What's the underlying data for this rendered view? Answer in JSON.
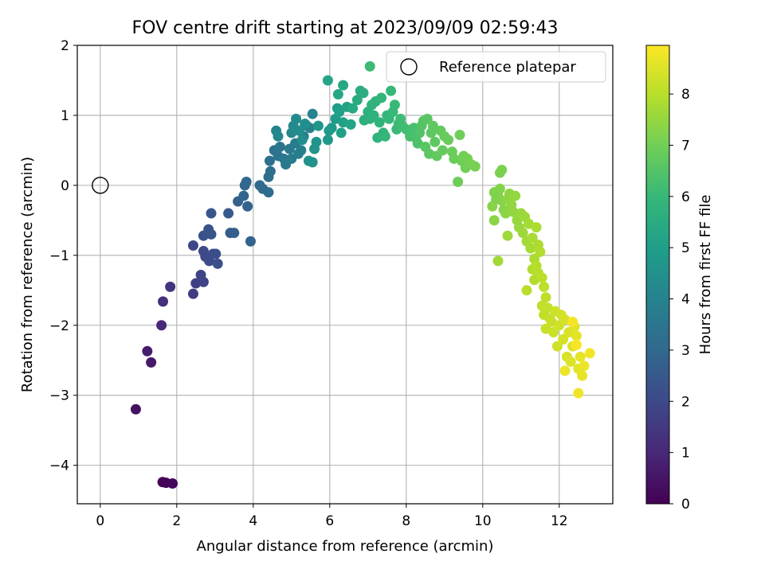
{
  "chart_data": {
    "type": "scatter",
    "title": "FOV centre drift starting at 2023/09/09 02:59:43",
    "xlabel": "Angular distance from reference (arcmin)",
    "ylabel": "Rotation from reference (arcmin)",
    "xlim": [
      -0.6,
      13.4
    ],
    "ylim": [
      -4.55,
      2.0
    ],
    "xticks": [
      0,
      2,
      4,
      6,
      8,
      10,
      12
    ],
    "yticks": [
      -4,
      -3,
      -2,
      -1,
      0,
      1,
      2
    ],
    "xtick_labels": [
      "0",
      "2",
      "4",
      "6",
      "8",
      "10",
      "12"
    ],
    "ytick_labels": [
      "−4",
      "−3",
      "−2",
      "−1",
      "0",
      "1",
      "2"
    ],
    "grid": true,
    "legend": {
      "placement": "top-right",
      "entries": [
        "Reference platepar"
      ]
    },
    "reference_point": {
      "x": 0,
      "y": 0
    },
    "colorbar": {
      "label": "Hours from first FF file",
      "range": [
        0,
        8.95
      ],
      "ticks": [
        0,
        1,
        2,
        3,
        4,
        5,
        6,
        7,
        8
      ],
      "colormap": "viridis",
      "colors": [
        "#440154",
        "#482878",
        "#3e4989",
        "#31688e",
        "#26828e",
        "#1f9e89",
        "#35b779",
        "#6ece58",
        "#b5de2b",
        "#fde725"
      ]
    },
    "series": [
      {
        "points": [
          [
            1.63,
            -4.24,
            0.05
          ],
          [
            1.72,
            -4.25,
            0.1
          ],
          [
            1.89,
            -4.26,
            0.15
          ],
          [
            0.93,
            -3.2,
            0.4
          ],
          [
            1.33,
            -2.53,
            0.6
          ],
          [
            1.23,
            -2.37,
            0.7
          ],
          [
            1.6,
            -2.0,
            1.0
          ],
          [
            1.64,
            -1.66,
            1.2
          ],
          [
            1.83,
            -1.45,
            1.35
          ],
          [
            2.43,
            -1.55,
            1.6
          ],
          [
            2.5,
            -1.4,
            1.7
          ],
          [
            2.7,
            -1.38,
            1.8
          ],
          [
            2.63,
            -1.28,
            1.85
          ],
          [
            2.43,
            -0.86,
            1.9
          ],
          [
            2.75,
            -1.02,
            1.95
          ],
          [
            2.7,
            -0.94,
            2.0
          ],
          [
            2.85,
            -1.08,
            2.05
          ],
          [
            2.95,
            -0.98,
            2.1
          ],
          [
            3.02,
            -0.98,
            2.15
          ],
          [
            3.07,
            -1.12,
            2.2
          ],
          [
            2.7,
            -0.72,
            2.25
          ],
          [
            2.83,
            -0.63,
            2.3
          ],
          [
            2.9,
            -0.7,
            2.35
          ],
          [
            2.9,
            -0.4,
            2.4
          ],
          [
            3.35,
            -0.4,
            2.55
          ],
          [
            3.4,
            -0.68,
            2.6
          ],
          [
            3.5,
            -0.68,
            2.65
          ],
          [
            3.6,
            -0.23,
            2.75
          ],
          [
            3.85,
            -0.3,
            2.8
          ],
          [
            3.93,
            -0.8,
            2.85
          ],
          [
            3.75,
            -0.15,
            2.9
          ],
          [
            3.78,
            0.0,
            2.95
          ],
          [
            3.82,
            0.05,
            3.0
          ],
          [
            4.17,
            0.0,
            3.05
          ],
          [
            4.25,
            -0.05,
            3.1
          ],
          [
            4.4,
            -0.1,
            3.15
          ],
          [
            4.4,
            0.12,
            3.2
          ],
          [
            4.45,
            0.2,
            3.25
          ],
          [
            4.43,
            0.35,
            3.3
          ],
          [
            4.55,
            0.5,
            3.4
          ],
          [
            4.65,
            0.42,
            3.45
          ],
          [
            4.7,
            0.55,
            3.5
          ],
          [
            4.8,
            0.38,
            3.55
          ],
          [
            4.85,
            0.3,
            3.6
          ],
          [
            4.95,
            0.52,
            3.65
          ],
          [
            5.0,
            0.38,
            3.7
          ],
          [
            5.1,
            0.6,
            3.75
          ],
          [
            5.18,
            0.45,
            3.8
          ],
          [
            5.25,
            0.5,
            3.85
          ],
          [
            5.32,
            0.7,
            3.9
          ],
          [
            5.4,
            0.85,
            3.95
          ],
          [
            5.48,
            0.82,
            4.0
          ],
          [
            5.55,
            1.02,
            4.05
          ],
          [
            4.6,
            0.78,
            4.1
          ],
          [
            4.65,
            0.7,
            4.15
          ],
          [
            5.0,
            0.75,
            4.2
          ],
          [
            5.05,
            0.85,
            4.25
          ],
          [
            5.12,
            0.95,
            4.3
          ],
          [
            5.2,
            0.78,
            4.35
          ],
          [
            5.28,
            0.65,
            4.4
          ],
          [
            5.35,
            0.88,
            4.45
          ],
          [
            5.45,
            0.35,
            4.5
          ],
          [
            5.55,
            0.33,
            4.55
          ],
          [
            5.6,
            0.52,
            4.6
          ],
          [
            5.65,
            0.62,
            4.65
          ],
          [
            5.7,
            0.85,
            4.7
          ],
          [
            5.95,
            0.65,
            4.75
          ],
          [
            5.98,
            0.78,
            4.8
          ],
          [
            6.05,
            0.82,
            4.85
          ],
          [
            6.15,
            0.95,
            4.9
          ],
          [
            6.2,
            1.1,
            4.95
          ],
          [
            6.25,
            1.05,
            5.0
          ],
          [
            6.3,
            0.75,
            5.05
          ],
          [
            6.35,
            0.9,
            5.1
          ],
          [
            6.45,
            1.12,
            5.15
          ],
          [
            6.55,
            0.87,
            5.2
          ],
          [
            5.95,
            1.5,
            5.25
          ],
          [
            6.22,
            1.3,
            5.3
          ],
          [
            6.35,
            1.43,
            5.35
          ],
          [
            6.6,
            1.1,
            5.4
          ],
          [
            6.72,
            1.22,
            5.45
          ],
          [
            6.8,
            1.35,
            5.5
          ],
          [
            6.88,
            1.32,
            5.55
          ],
          [
            6.9,
            0.93,
            5.6
          ],
          [
            7.0,
            1.05,
            5.65
          ],
          [
            7.05,
            0.95,
            5.7
          ],
          [
            7.1,
            1.15,
            5.72
          ],
          [
            7.15,
            1.0,
            5.75
          ],
          [
            7.2,
            1.2,
            5.78
          ],
          [
            7.25,
            0.68,
            5.8
          ],
          [
            7.3,
            0.9,
            5.82
          ],
          [
            7.35,
            1.25,
            5.85
          ],
          [
            7.4,
            0.75,
            5.88
          ],
          [
            7.45,
            0.7,
            5.9
          ],
          [
            7.5,
            1.0,
            5.92
          ],
          [
            7.55,
            0.95,
            5.95
          ],
          [
            7.6,
            1.35,
            5.98
          ],
          [
            7.65,
            1.05,
            6.0
          ],
          [
            7.7,
            1.15,
            6.02
          ],
          [
            7.75,
            0.8,
            6.05
          ],
          [
            7.8,
            0.88,
            6.08
          ],
          [
            7.05,
            1.7,
            6.1
          ],
          [
            7.85,
            0.95,
            6.12
          ],
          [
            7.9,
            0.85,
            6.15
          ],
          [
            8.0,
            0.8,
            6.2
          ],
          [
            8.1,
            0.7,
            6.25
          ],
          [
            8.2,
            0.82,
            6.3
          ],
          [
            8.25,
            0.68,
            6.35
          ],
          [
            8.3,
            0.6,
            6.4
          ],
          [
            8.35,
            0.75,
            6.45
          ],
          [
            8.4,
            0.85,
            6.5
          ],
          [
            8.45,
            0.92,
            6.55
          ],
          [
            8.5,
            0.55,
            6.6
          ],
          [
            8.55,
            0.95,
            6.62
          ],
          [
            8.6,
            0.45,
            6.65
          ],
          [
            8.65,
            0.75,
            6.68
          ],
          [
            8.7,
            0.85,
            6.7
          ],
          [
            8.75,
            0.62,
            6.72
          ],
          [
            8.8,
            0.42,
            6.75
          ],
          [
            8.9,
            0.78,
            6.78
          ],
          [
            8.95,
            0.5,
            6.8
          ],
          [
            9.0,
            0.7,
            6.82
          ],
          [
            9.1,
            0.65,
            6.85
          ],
          [
            9.2,
            0.48,
            6.88
          ],
          [
            9.25,
            0.38,
            6.9
          ],
          [
            9.35,
            0.05,
            6.92
          ],
          [
            9.45,
            0.35,
            6.95
          ],
          [
            9.4,
            0.72,
            6.97
          ],
          [
            9.5,
            0.42,
            7.0
          ],
          [
            9.55,
            0.25,
            7.02
          ],
          [
            9.6,
            0.38,
            7.05
          ],
          [
            9.7,
            0.3,
            7.08
          ],
          [
            9.8,
            0.27,
            7.1
          ],
          [
            10.45,
            0.18,
            7.12
          ],
          [
            10.5,
            0.22,
            7.15
          ],
          [
            10.3,
            -0.1,
            7.18
          ],
          [
            10.35,
            -0.2,
            7.2
          ],
          [
            10.4,
            -0.15,
            7.22
          ],
          [
            10.45,
            -0.05,
            7.25
          ],
          [
            10.5,
            -0.22,
            7.28
          ],
          [
            10.55,
            -0.35,
            7.3
          ],
          [
            10.25,
            -0.3,
            7.32
          ],
          [
            10.3,
            -0.5,
            7.35
          ],
          [
            10.6,
            -0.4,
            7.38
          ],
          [
            10.65,
            -0.2,
            7.4
          ],
          [
            10.7,
            -0.12,
            7.42
          ],
          [
            10.75,
            -0.28,
            7.45
          ],
          [
            10.8,
            -0.38,
            7.48
          ],
          [
            10.85,
            -0.15,
            7.5
          ],
          [
            10.9,
            -0.5,
            7.52
          ],
          [
            10.95,
            -0.6,
            7.55
          ],
          [
            11.0,
            -0.4,
            7.58
          ],
          [
            11.05,
            -0.68,
            7.6
          ],
          [
            11.1,
            -0.45,
            7.62
          ],
          [
            10.65,
            -0.72,
            7.65
          ],
          [
            10.4,
            -1.08,
            7.68
          ],
          [
            11.15,
            -0.8,
            7.7
          ],
          [
            11.2,
            -0.55,
            7.72
          ],
          [
            11.25,
            -0.9,
            7.75
          ],
          [
            11.3,
            -0.75,
            7.78
          ],
          [
            11.35,
            -1.05,
            7.8
          ],
          [
            11.4,
            -0.6,
            7.82
          ],
          [
            11.45,
            -0.85,
            7.85
          ],
          [
            11.5,
            -0.95,
            7.88
          ],
          [
            11.3,
            -1.2,
            7.9
          ],
          [
            11.35,
            -1.35,
            7.92
          ],
          [
            11.4,
            -1.15,
            7.95
          ],
          [
            11.45,
            -1.25,
            7.98
          ],
          [
            11.15,
            -1.5,
            8.0
          ],
          [
            11.55,
            -1.32,
            8.02
          ],
          [
            11.6,
            -1.45,
            8.05
          ],
          [
            11.65,
            -1.6,
            8.08
          ],
          [
            11.55,
            -1.72,
            8.1
          ],
          [
            11.6,
            -1.85,
            8.12
          ],
          [
            11.7,
            -1.75,
            8.15
          ],
          [
            11.75,
            -1.9,
            8.18
          ],
          [
            11.65,
            -2.05,
            8.2
          ],
          [
            11.8,
            -1.95,
            8.22
          ],
          [
            11.85,
            -2.1,
            8.25
          ],
          [
            11.9,
            -1.8,
            8.28
          ],
          [
            11.95,
            -2.3,
            8.3
          ],
          [
            12.0,
            -2.0,
            8.32
          ],
          [
            12.05,
            -1.85,
            8.35
          ],
          [
            12.1,
            -2.2,
            8.38
          ],
          [
            12.15,
            -1.92,
            8.4
          ],
          [
            12.2,
            -2.45,
            8.42
          ],
          [
            12.25,
            -2.1,
            8.45
          ],
          [
            12.3,
            -2.52,
            8.5
          ],
          [
            12.35,
            -2.3,
            8.52
          ],
          [
            12.4,
            -2.02,
            8.55
          ],
          [
            12.45,
            -2.15,
            8.58
          ],
          [
            12.5,
            -2.62,
            8.6
          ],
          [
            12.55,
            -2.45,
            8.62
          ],
          [
            12.6,
            -2.72,
            8.65
          ],
          [
            12.65,
            -2.58,
            8.7
          ],
          [
            12.15,
            -2.65,
            8.72
          ],
          [
            12.5,
            -2.97,
            8.75
          ],
          [
            12.8,
            -2.4,
            8.8
          ],
          [
            12.35,
            -1.95,
            8.82
          ],
          [
            12.45,
            -2.28,
            8.85
          ]
        ]
      }
    ]
  }
}
